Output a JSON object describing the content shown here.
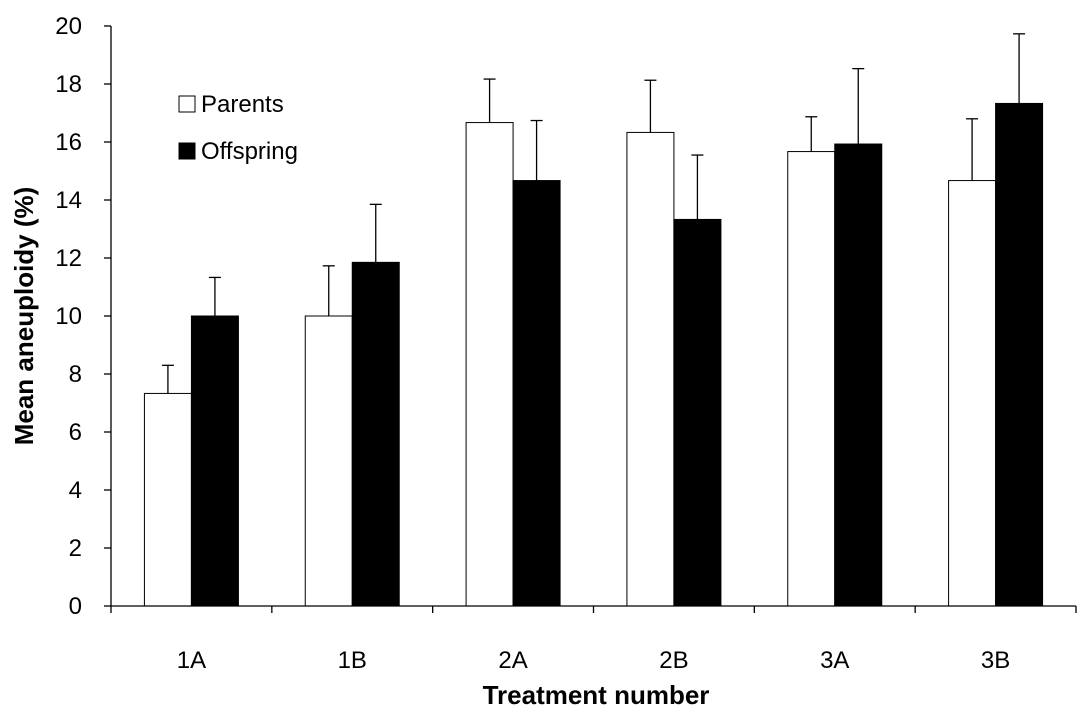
{
  "chart_data": {
    "type": "bar",
    "title": "",
    "xlabel": "Treatment number",
    "ylabel": "Mean aneuploidy (%)",
    "categories": [
      "1A",
      "1B",
      "2A",
      "2B",
      "3A",
      "3B"
    ],
    "ylim": [
      0,
      20
    ],
    "yticks": [
      0,
      2,
      4,
      6,
      8,
      10,
      12,
      14,
      16,
      18,
      20
    ],
    "grid": false,
    "legend_position": "top-left",
    "error_bars": "upper",
    "series": [
      {
        "name": "Parents",
        "color": "#ffffff",
        "values": [
          7.33,
          10.0,
          16.67,
          16.33,
          15.67,
          14.67
        ],
        "errors": [
          0.97,
          1.73,
          1.5,
          1.8,
          1.2,
          2.13
        ]
      },
      {
        "name": "Offspring",
        "color": "#000000",
        "values": [
          10.0,
          11.85,
          14.67,
          13.33,
          15.93,
          17.33
        ],
        "errors": [
          1.33,
          2.0,
          2.07,
          2.22,
          2.6,
          2.4
        ]
      }
    ]
  }
}
